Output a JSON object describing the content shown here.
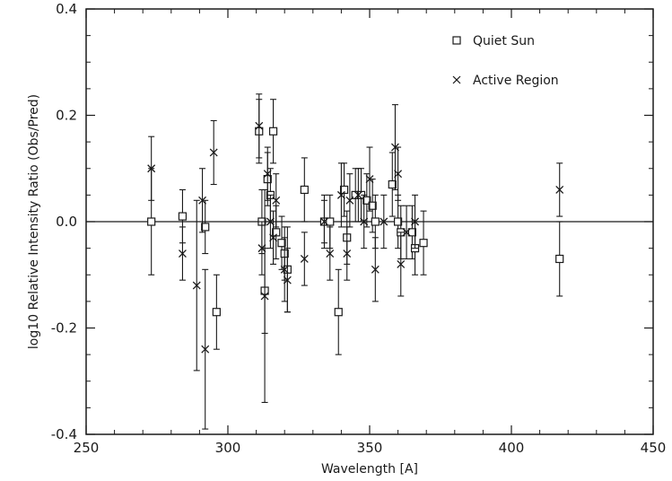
{
  "chart_data": {
    "type": "scatter",
    "xlabel": "Wavelength   [A]",
    "ylabel": "log10 Relative Intensity Ratio (Obs/Pred)",
    "xlim": [
      250,
      450
    ],
    "ylim": [
      -0.4,
      0.4
    ],
    "x_ticks": [
      "250",
      "300",
      "350",
      "400",
      "450"
    ],
    "y_ticks": [
      "0.4",
      "0.2",
      "0.0",
      "-0.2",
      "-0.4"
    ],
    "reference_line_y": 0.0,
    "legend": {
      "placement": "top-right",
      "entries": [
        "Quiet Sun",
        "Active Region"
      ]
    },
    "series": [
      {
        "name": "Quiet Sun",
        "marker": "square",
        "points": [
          {
            "x": 273,
            "y": 0.0,
            "err": 0.1
          },
          {
            "x": 284,
            "y": 0.01,
            "err": 0.05
          },
          {
            "x": 292,
            "y": -0.01,
            "err": 0.05
          },
          {
            "x": 296,
            "y": -0.17,
            "err": 0.07
          },
          {
            "x": 311,
            "y": 0.17,
            "err": 0.06
          },
          {
            "x": 312,
            "y": 0.0,
            "err": 0.06
          },
          {
            "x": 313,
            "y": -0.13,
            "err": 0.08
          },
          {
            "x": 314,
            "y": 0.08,
            "err": 0.05
          },
          {
            "x": 315,
            "y": 0.05,
            "err": 0.05
          },
          {
            "x": 316,
            "y": 0.17,
            "err": 0.06
          },
          {
            "x": 317,
            "y": -0.02,
            "err": 0.05
          },
          {
            "x": 319,
            "y": -0.04,
            "err": 0.05
          },
          {
            "x": 320,
            "y": -0.06,
            "err": 0.05
          },
          {
            "x": 321,
            "y": -0.09,
            "err": 0.08
          },
          {
            "x": 327,
            "y": 0.06,
            "err": 0.06
          },
          {
            "x": 334,
            "y": 0.0,
            "err": 0.05
          },
          {
            "x": 336,
            "y": 0.0,
            "err": 0.05
          },
          {
            "x": 339,
            "y": -0.17,
            "err": 0.08
          },
          {
            "x": 341,
            "y": 0.06,
            "err": 0.05
          },
          {
            "x": 342,
            "y": -0.03,
            "err": 0.05
          },
          {
            "x": 345,
            "y": 0.05,
            "err": 0.05
          },
          {
            "x": 347,
            "y": 0.05,
            "err": 0.05
          },
          {
            "x": 349,
            "y": 0.04,
            "err": 0.05
          },
          {
            "x": 351,
            "y": 0.03,
            "err": 0.05
          },
          {
            "x": 352,
            "y": 0.0,
            "err": 0.05
          },
          {
            "x": 358,
            "y": 0.07,
            "err": 0.06
          },
          {
            "x": 360,
            "y": 0.0,
            "err": 0.05
          },
          {
            "x": 361,
            "y": -0.02,
            "err": 0.05
          },
          {
            "x": 365,
            "y": -0.02,
            "err": 0.05
          },
          {
            "x": 366,
            "y": -0.05,
            "err": 0.05
          },
          {
            "x": 369,
            "y": -0.04,
            "err": 0.06
          },
          {
            "x": 417,
            "y": -0.07,
            "err": 0.07
          }
        ]
      },
      {
        "name": "Active Region",
        "marker": "x",
        "points": [
          {
            "x": 273,
            "y": 0.1,
            "err": 0.06
          },
          {
            "x": 284,
            "y": -0.06,
            "err": 0.05
          },
          {
            "x": 289,
            "y": -0.12,
            "err": 0.16
          },
          {
            "x": 291,
            "y": 0.04,
            "err": 0.06
          },
          {
            "x": 292,
            "y": -0.24,
            "err": 0.15
          },
          {
            "x": 295,
            "y": 0.13,
            "err": 0.06
          },
          {
            "x": 311,
            "y": 0.18,
            "err": 0.06
          },
          {
            "x": 312,
            "y": -0.05,
            "err": 0.05
          },
          {
            "x": 313,
            "y": -0.14,
            "err": 0.2
          },
          {
            "x": 314,
            "y": 0.09,
            "err": 0.05
          },
          {
            "x": 315,
            "y": 0.0,
            "err": 0.05
          },
          {
            "x": 316,
            "y": -0.03,
            "err": 0.05
          },
          {
            "x": 317,
            "y": 0.04,
            "err": 0.05
          },
          {
            "x": 320,
            "y": -0.09,
            "err": 0.06
          },
          {
            "x": 321,
            "y": -0.11,
            "err": 0.06
          },
          {
            "x": 327,
            "y": -0.07,
            "err": 0.05
          },
          {
            "x": 334,
            "y": 0.0,
            "err": 0.04
          },
          {
            "x": 336,
            "y": -0.06,
            "err": 0.05
          },
          {
            "x": 340,
            "y": 0.05,
            "err": 0.06
          },
          {
            "x": 342,
            "y": -0.06,
            "err": 0.05
          },
          {
            "x": 343,
            "y": 0.04,
            "err": 0.05
          },
          {
            "x": 346,
            "y": 0.05,
            "err": 0.05
          },
          {
            "x": 348,
            "y": 0.0,
            "err": 0.05
          },
          {
            "x": 350,
            "y": 0.08,
            "err": 0.06
          },
          {
            "x": 352,
            "y": -0.09,
            "err": 0.06
          },
          {
            "x": 355,
            "y": 0.0,
            "err": 0.05
          },
          {
            "x": 359,
            "y": 0.14,
            "err": 0.08
          },
          {
            "x": 360,
            "y": 0.09,
            "err": 0.05
          },
          {
            "x": 361,
            "y": -0.08,
            "err": 0.06
          },
          {
            "x": 363,
            "y": -0.02,
            "err": 0.05
          },
          {
            "x": 366,
            "y": 0.0,
            "err": 0.05
          },
          {
            "x": 417,
            "y": 0.06,
            "err": 0.05
          }
        ]
      }
    ]
  }
}
